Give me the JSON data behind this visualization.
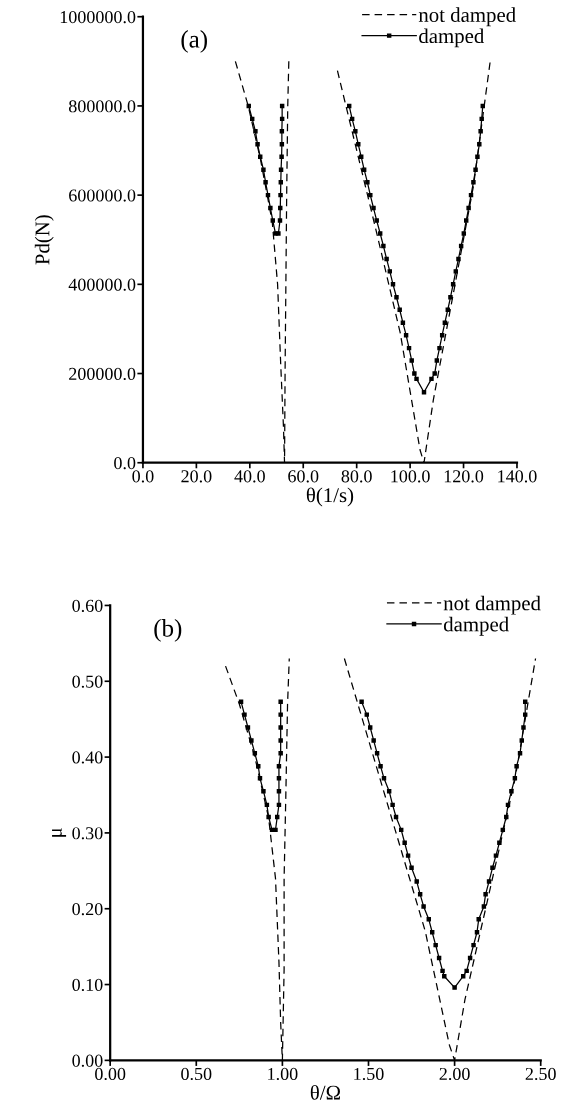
{
  "chart_data": [
    {
      "type": "line",
      "xlabel": "θ(1/s)",
      "ylabel": "Pd(N)",
      "annotations": [
        "(a)"
      ],
      "legend": "top right",
      "grid": false,
      "xlim": [
        0,
        140
      ],
      "xticks": [
        {
          "value": 0,
          "label": "0.0"
        },
        {
          "value": 20,
          "label": "20.0"
        },
        {
          "value": 40,
          "label": "40.0"
        },
        {
          "value": 60,
          "label": "60.0"
        },
        {
          "value": 80,
          "label": "80.0"
        },
        {
          "value": 100,
          "label": "100.0"
        },
        {
          "value": 120,
          "label": "120.0"
        },
        {
          "value": 140,
          "label": "140.0"
        }
      ],
      "ylim": [
        0,
        1000000
      ],
      "yticks": [
        {
          "value": 0,
          "label": "0.0"
        },
        {
          "value": 200000,
          "label": "200000.0"
        },
        {
          "value": 400000,
          "label": "400000.0"
        },
        {
          "value": 600000,
          "label": "600000.0"
        },
        {
          "value": 800000,
          "label": "800000.0"
        },
        {
          "value": 1000000,
          "label": "1000000.0"
        }
      ],
      "series": [
        {
          "name": "not damped",
          "color": "#000000",
          "line_style": "dashed",
          "marker": "none",
          "x": [
            34.6,
            39.4,
            44,
            48.4,
            50.4,
            51.6,
            52.6,
            53.0,
            53.2,
            53.5,
            53.8,
            54.2,
            54.6,
            null,
            72.8,
            87.5,
            96.3,
            103.7,
            105.2,
            108.7,
            116.2,
            123.7,
            130.0
          ],
          "values": [
            900000,
            800000,
            680000,
            540000,
            400000,
            216000,
            80000,
            0,
            200000,
            400000,
            600000,
            800000,
            900000,
            null,
            879000,
            515000,
            291000,
            29000,
            0,
            141000,
            380000,
            620000,
            901000
          ]
        },
        {
          "name": "damped",
          "color": "#000000",
          "line_style": "solid",
          "marker": "square",
          "x": [
            39.6,
            40.9,
            42.1,
            42.9,
            43.9,
            45.1,
            45.9,
            46.8,
            47.7,
            48.6,
            49.6,
            50.7,
            51.3,
            51.4,
            51.5,
            51.6,
            51.7,
            51.9,
            52.0,
            52.0,
            52.1,
            52.1,
            null,
            77.2,
            78.3,
            79.5,
            80.6,
            81.7,
            82.8,
            84.0,
            85.1,
            86.3,
            87.5,
            88.8,
            90.0,
            91.2,
            92.4,
            93.6,
            94.9,
            96.1,
            97.3,
            98.5,
            99.6,
            100.6,
            101.6,
            102.4,
            105.2,
            108.0,
            109.2,
            110.0,
            111.0,
            112.0,
            113.0,
            114.1,
            115.1,
            116.1,
            117.1,
            118.1,
            119.1,
            120.1,
            121.0,
            121.9,
            122.8,
            123.7,
            124.5,
            125.2,
            125.9,
            126.4,
            126.8,
            127.2
          ],
          "values": [
            800000,
            771000,
            743000,
            714000,
            686000,
            657000,
            629000,
            600000,
            571000,
            543000,
            514000,
            514000,
            543000,
            571000,
            600000,
            629000,
            657000,
            686000,
            714000,
            743000,
            771000,
            800000,
            null,
            800000,
            771000,
            743000,
            714000,
            686000,
            657000,
            629000,
            600000,
            571000,
            543000,
            514000,
            486000,
            457000,
            429000,
            400000,
            371000,
            343000,
            314000,
            286000,
            257000,
            229000,
            200000,
            188000,
            158000,
            188000,
            200000,
            229000,
            257000,
            286000,
            314000,
            343000,
            371000,
            400000,
            429000,
            457000,
            486000,
            514000,
            543000,
            571000,
            600000,
            629000,
            657000,
            686000,
            714000,
            743000,
            771000,
            800000
          ]
        }
      ]
    },
    {
      "type": "line",
      "xlabel": "θ/Ω",
      "ylabel": "μ",
      "annotations": [
        "(b)"
      ],
      "legend": "top right",
      "grid": false,
      "xlim": [
        0,
        2.5
      ],
      "xticks": [
        {
          "value": 0,
          "label": "0.00"
        },
        {
          "value": 0.5,
          "label": "0.50"
        },
        {
          "value": 1.0,
          "label": "1.00"
        },
        {
          "value": 1.5,
          "label": "1.50"
        },
        {
          "value": 2.0,
          "label": "2.00"
        },
        {
          "value": 2.5,
          "label": "2.50"
        }
      ],
      "ylim": [
        0,
        0.6
      ],
      "yticks": [
        {
          "value": 0,
          "label": "0.00"
        },
        {
          "value": 0.1,
          "label": "0.10"
        },
        {
          "value": 0.2,
          "label": "0.20"
        },
        {
          "value": 0.3,
          "label": "0.30"
        },
        {
          "value": 0.4,
          "label": "0.40"
        },
        {
          "value": 0.5,
          "label": "0.50"
        },
        {
          "value": 0.6,
          "label": "0.60"
        }
      ],
      "series": [
        {
          "name": "not damped",
          "color": "#000000",
          "line_style": "dashed",
          "marker": "none",
          "x": [
            0.67,
            0.75,
            0.84,
            0.92,
            0.96,
            0.98,
            0.99,
            1.0,
            1.01,
            1.01,
            1.02,
            1.03,
            1.04,
            null,
            1.36,
            1.66,
            1.83,
            1.97,
            2.0,
            2.06,
            2.21,
            2.35,
            2.47
          ],
          "values": [
            0.52,
            0.47,
            0.4,
            0.32,
            0.24,
            0.13,
            0.05,
            0.0,
            0.12,
            0.24,
            0.35,
            0.47,
            0.53,
            null,
            0.53,
            0.3,
            0.17,
            0.02,
            0.0,
            0.08,
            0.23,
            0.37,
            0.53
          ]
        },
        {
          "name": "damped",
          "color": "#000000",
          "line_style": "solid",
          "marker": "square",
          "x": [
            0.76,
            0.78,
            0.8,
            0.82,
            0.84,
            0.86,
            0.87,
            0.89,
            0.91,
            0.92,
            0.94,
            0.96,
            0.97,
            0.98,
            0.98,
            0.98,
            0.98,
            0.99,
            0.99,
            0.99,
            0.99,
            0.99,
            null,
            1.46,
            1.49,
            1.51,
            1.53,
            1.55,
            1.57,
            1.59,
            1.62,
            1.64,
            1.66,
            1.69,
            1.71,
            1.73,
            1.75,
            1.78,
            1.8,
            1.82,
            1.85,
            1.87,
            1.89,
            1.91,
            1.93,
            1.94,
            2.0,
            2.05,
            2.07,
            2.09,
            2.11,
            2.13,
            2.14,
            2.17,
            2.18,
            2.2,
            2.22,
            2.24,
            2.26,
            2.28,
            2.3,
            2.31,
            2.33,
            2.35,
            2.36,
            2.38,
            2.39,
            2.4,
            2.41,
            2.41
          ],
          "values": [
            0.473,
            0.456,
            0.439,
            0.422,
            0.405,
            0.388,
            0.372,
            0.355,
            0.337,
            0.321,
            0.304,
            0.304,
            0.321,
            0.337,
            0.355,
            0.372,
            0.388,
            0.405,
            0.422,
            0.439,
            0.456,
            0.473,
            null,
            0.473,
            0.456,
            0.439,
            0.422,
            0.405,
            0.388,
            0.372,
            0.355,
            0.337,
            0.321,
            0.304,
            0.287,
            0.27,
            0.254,
            0.236,
            0.219,
            0.203,
            0.186,
            0.169,
            0.152,
            0.135,
            0.118,
            0.111,
            0.096,
            0.111,
            0.118,
            0.135,
            0.152,
            0.169,
            0.186,
            0.203,
            0.219,
            0.236,
            0.254,
            0.27,
            0.287,
            0.304,
            0.321,
            0.337,
            0.355,
            0.372,
            0.388,
            0.405,
            0.422,
            0.439,
            0.456,
            0.473
          ]
        }
      ]
    }
  ]
}
